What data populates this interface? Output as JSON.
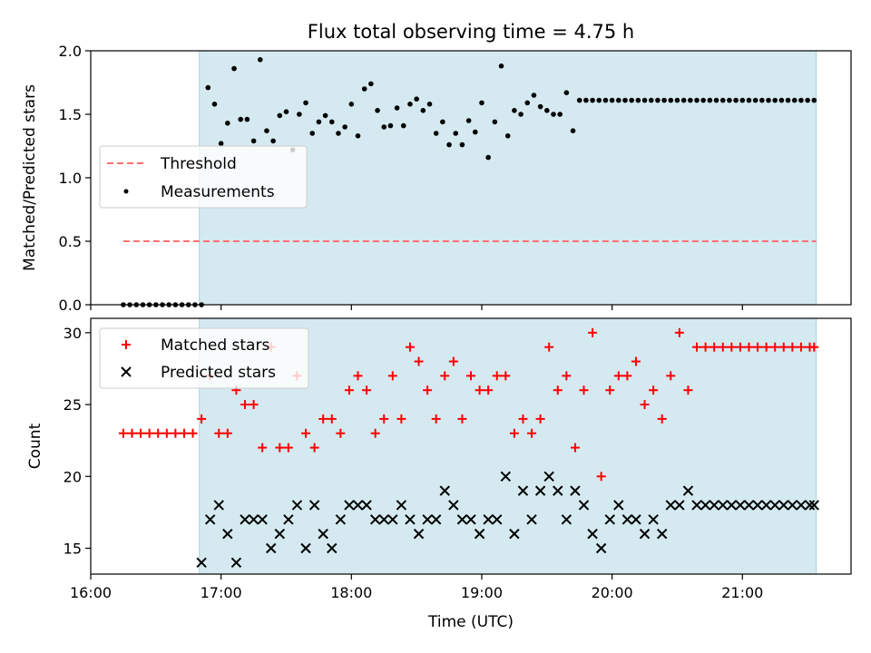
{
  "chart_data": [
    {
      "type": "scatter",
      "title": "Flux total observing time = 4.75 h",
      "xlabel": "",
      "ylabel": "Matched/Predicted stars",
      "ylim": [
        0,
        2.0
      ],
      "yticks": [
        "0.0",
        "0.5",
        "1.0",
        "1.5",
        "2.0"
      ],
      "xlim": [
        "16:00",
        "21:50"
      ],
      "xticks": [
        "16:00",
        "17:00",
        "18:00",
        "19:00",
        "20:00",
        "21:00"
      ],
      "shaded_region": {
        "start": "16:50",
        "end": "21:34",
        "color": "#d4eaf0"
      },
      "legend": {
        "position": "center-left",
        "entries": [
          "Threshold",
          "Measurements"
        ]
      },
      "series": [
        {
          "name": "Threshold",
          "kind": "dashed-line",
          "color": "#ff7070",
          "x": [
            "16:15",
            "21:34"
          ],
          "y": [
            0.5,
            0.5
          ]
        },
        {
          "name": "Measurements",
          "kind": "points",
          "color": "#000000",
          "x": [
            "16:15",
            "16:18",
            "16:21",
            "16:24",
            "16:27",
            "16:30",
            "16:33",
            "16:36",
            "16:39",
            "16:42",
            "16:45",
            "16:48",
            "16:51",
            "16:54",
            "16:57",
            "17:00",
            "17:03",
            "17:06",
            "17:09",
            "17:12",
            "17:15",
            "17:18",
            "17:21",
            "17:24",
            "17:27",
            "17:30",
            "17:33",
            "17:36",
            "17:39",
            "17:42",
            "17:45",
            "17:48",
            "17:51",
            "17:54",
            "17:57",
            "18:00",
            "18:03",
            "18:06",
            "18:09",
            "18:12",
            "18:15",
            "18:18",
            "18:21",
            "18:24",
            "18:27",
            "18:30",
            "18:33",
            "18:36",
            "18:39",
            "18:42",
            "18:45",
            "18:48",
            "18:51",
            "18:54",
            "18:57",
            "19:00",
            "19:03",
            "19:06",
            "19:09",
            "19:12",
            "19:15",
            "19:18",
            "19:21",
            "19:24",
            "19:27",
            "19:30",
            "19:33",
            "19:36",
            "19:39",
            "19:42",
            "19:45",
            "19:48",
            "19:51",
            "19:54",
            "19:57",
            "20:00",
            "20:03",
            "20:06",
            "20:09",
            "20:12",
            "20:15",
            "20:18",
            "20:21",
            "20:24",
            "20:27",
            "20:30",
            "20:33",
            "20:36",
            "20:39",
            "20:42",
            "20:45",
            "20:48",
            "20:51",
            "20:54",
            "20:57",
            "21:00",
            "21:03",
            "21:06",
            "21:09",
            "21:12",
            "21:15",
            "21:18",
            "21:21",
            "21:24",
            "21:27",
            "21:30",
            "21:33"
          ],
          "y": [
            0.0,
            0.0,
            0.0,
            0.0,
            0.0,
            0.0,
            0.0,
            0.0,
            0.0,
            0.0,
            0.0,
            0.0,
            0.0,
            1.71,
            1.58,
            1.27,
            1.43,
            1.86,
            1.46,
            1.46,
            1.29,
            1.93,
            1.37,
            1.29,
            1.49,
            1.52,
            1.22,
            1.5,
            1.59,
            1.35,
            1.44,
            1.49,
            1.44,
            1.35,
            1.4,
            1.58,
            1.33,
            1.7,
            1.74,
            1.53,
            1.4,
            1.41,
            1.55,
            1.41,
            1.58,
            1.62,
            1.53,
            1.58,
            1.35,
            1.44,
            1.26,
            1.35,
            1.26,
            1.45,
            1.36,
            1.59,
            1.16,
            1.44,
            1.88,
            1.33,
            1.53,
            1.5,
            1.59,
            1.65,
            1.56,
            1.53,
            1.5,
            1.5,
            1.67,
            1.37,
            1.61,
            1.61,
            1.61,
            1.61,
            1.61,
            1.61,
            1.61,
            1.61,
            1.61,
            1.61,
            1.61,
            1.61,
            1.61,
            1.61,
            1.61,
            1.61,
            1.61,
            1.61,
            1.61,
            1.61,
            1.61,
            1.61,
            1.61,
            1.61,
            1.61,
            1.61,
            1.61,
            1.61,
            1.61,
            1.61,
            1.61,
            1.61,
            1.61,
            1.61,
            1.61,
            1.61,
            1.61
          ]
        }
      ]
    },
    {
      "type": "scatter",
      "title": "",
      "xlabel": "Time (UTC)",
      "ylabel": "Count",
      "ylim": [
        13.2,
        31.0
      ],
      "yticks": [
        "15",
        "20",
        "25",
        "30"
      ],
      "xlim": [
        "16:00",
        "21:50"
      ],
      "xticks": [
        "16:00",
        "17:00",
        "18:00",
        "19:00",
        "20:00",
        "21:00"
      ],
      "shaded_region": {
        "start": "16:50",
        "end": "21:34",
        "color": "#d4eaf0"
      },
      "legend": {
        "position": "top-left",
        "entries": [
          "Matched stars",
          "Predicted stars"
        ]
      },
      "series": [
        {
          "name": "Matched stars",
          "kind": "plus",
          "color": "#ff0000",
          "x": [
            "16:15",
            "16:19",
            "16:23",
            "16:27",
            "16:31",
            "16:35",
            "16:39",
            "16:43",
            "16:47",
            "16:51",
            "16:55",
            "16:59",
            "17:03",
            "17:07",
            "17:11",
            "17:15",
            "17:19",
            "17:23",
            "17:27",
            "17:31",
            "17:35",
            "17:39",
            "17:43",
            "17:47",
            "17:51",
            "17:55",
            "17:59",
            "18:03",
            "18:07",
            "18:11",
            "18:15",
            "18:19",
            "18:23",
            "18:27",
            "18:31",
            "18:35",
            "18:39",
            "18:43",
            "18:47",
            "18:51",
            "18:55",
            "18:59",
            "19:03",
            "19:07",
            "19:11",
            "19:15",
            "19:19",
            "19:23",
            "19:27",
            "19:31",
            "19:35",
            "19:39",
            "19:43",
            "19:47",
            "19:51",
            "19:55",
            "19:59",
            "20:03",
            "20:07",
            "20:11",
            "20:15",
            "20:19",
            "20:23",
            "20:27",
            "20:31",
            "20:35",
            "20:39",
            "20:43",
            "20:47",
            "20:51",
            "20:55",
            "20:59",
            "21:03",
            "21:07",
            "21:11",
            "21:15",
            "21:19",
            "21:23",
            "21:27",
            "21:31",
            "21:33"
          ],
          "y": [
            23,
            23,
            23,
            23,
            23,
            23,
            23,
            23,
            23,
            24,
            27,
            23,
            23,
            26,
            25,
            25,
            22,
            29,
            22,
            22,
            27,
            23,
            22,
            24,
            24,
            23,
            26,
            27,
            26,
            23,
            24,
            27,
            24,
            29,
            28,
            26,
            24,
            27,
            28,
            24,
            27,
            26,
            26,
            27,
            27,
            23,
            24,
            23,
            24,
            29,
            26,
            27,
            22,
            26,
            30,
            20,
            26,
            27,
            27,
            28,
            25,
            26,
            24,
            27,
            30,
            26,
            29,
            29,
            29,
            29,
            29,
            29,
            29,
            29,
            29,
            29,
            29,
            29,
            29,
            29,
            29
          ]
        },
        {
          "name": "Predicted stars",
          "kind": "x",
          "color": "#000000",
          "x": [
            "16:51",
            "16:55",
            "16:59",
            "17:03",
            "17:07",
            "17:11",
            "17:15",
            "17:19",
            "17:23",
            "17:27",
            "17:31",
            "17:35",
            "17:39",
            "17:43",
            "17:47",
            "17:51",
            "17:55",
            "17:59",
            "18:03",
            "18:07",
            "18:11",
            "18:15",
            "18:19",
            "18:23",
            "18:27",
            "18:31",
            "18:35",
            "18:39",
            "18:43",
            "18:47",
            "18:51",
            "18:55",
            "18:59",
            "19:03",
            "19:07",
            "19:11",
            "19:15",
            "19:19",
            "19:23",
            "19:27",
            "19:31",
            "19:35",
            "19:39",
            "19:43",
            "19:47",
            "19:51",
            "19:55",
            "19:59",
            "20:03",
            "20:07",
            "20:11",
            "20:15",
            "20:19",
            "20:23",
            "20:27",
            "20:31",
            "20:35",
            "20:39",
            "20:43",
            "20:47",
            "20:51",
            "20:55",
            "20:59",
            "21:03",
            "21:07",
            "21:11",
            "21:15",
            "21:19",
            "21:23",
            "21:27",
            "21:31",
            "21:33"
          ],
          "y": [
            14,
            17,
            18,
            16,
            14,
            17,
            17,
            17,
            15,
            16,
            17,
            18,
            15,
            18,
            16,
            15,
            17,
            18,
            18,
            18,
            17,
            17,
            17,
            18,
            17,
            16,
            17,
            17,
            19,
            18,
            17,
            17,
            16,
            17,
            17,
            20,
            16,
            19,
            17,
            19,
            20,
            19,
            17,
            19,
            18,
            16,
            15,
            17,
            18,
            17,
            17,
            16,
            17,
            16,
            18,
            18,
            19,
            18,
            18,
            18,
            18,
            18,
            18,
            18,
            18,
            18,
            18,
            18,
            18,
            18,
            18,
            18
          ]
        }
      ]
    }
  ]
}
